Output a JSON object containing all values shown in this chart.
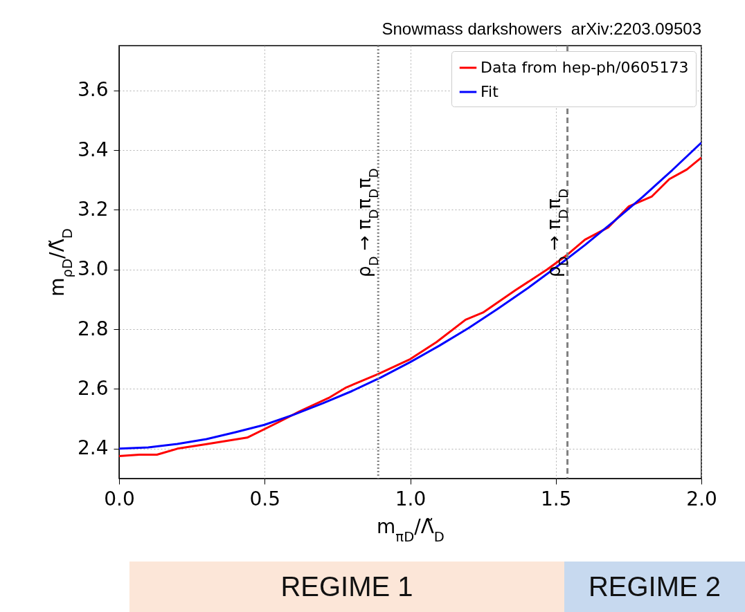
{
  "chart_data": {
    "type": "line",
    "title": "Snowmass darkshowers  arXiv:2203.09503",
    "xlabel": "m$_{πD}$/Λ̃$_{D}$",
    "ylabel": "m$_{ρD}$/Λ̃$_{D}$",
    "series": [
      {
        "name": "Data from hep-ph/0605173",
        "color": "#ff0000",
        "x": [
          0,
          0.07,
          0.13,
          0.2,
          0.3,
          0.44,
          0.55,
          0.62,
          0.72,
          0.78,
          0.89,
          1.0,
          1.09,
          1.19,
          1.25,
          1.36,
          1.47,
          1.54,
          1.6,
          1.68,
          1.75,
          1.83,
          1.89,
          1.95,
          2.0
        ],
        "values": [
          2.375,
          2.38,
          2.38,
          2.4,
          2.415,
          2.437,
          2.49,
          2.525,
          2.57,
          2.605,
          2.65,
          2.7,
          2.757,
          2.832,
          2.856,
          2.93,
          3.0,
          3.05,
          3.1,
          3.141,
          3.211,
          3.245,
          3.303,
          3.335,
          3.375
        ]
      },
      {
        "name": "Fit",
        "color": "#0000ff",
        "x": [
          0,
          0.1,
          0.2,
          0.3,
          0.4,
          0.5,
          0.6,
          0.7,
          0.8,
          0.9,
          1.0,
          1.1,
          1.2,
          1.3,
          1.4,
          1.5,
          1.6,
          1.7,
          1.8,
          1.9,
          2.0
        ],
        "values": [
          2.4,
          2.404,
          2.416,
          2.432,
          2.455,
          2.48,
          2.514,
          2.552,
          2.593,
          2.639,
          2.69,
          2.745,
          2.804,
          2.868,
          2.935,
          3.007,
          3.082,
          3.162,
          3.245,
          3.333,
          3.425
        ]
      }
    ],
    "xlim": [
      0,
      2
    ],
    "ylim": [
      2.3,
      3.75
    ],
    "xticks": [
      {
        "value": 0,
        "label": "0.0"
      },
      {
        "value": 0.5,
        "label": "0.5"
      },
      {
        "value": 1,
        "label": "1.0"
      },
      {
        "value": 1.5,
        "label": "1.5"
      },
      {
        "value": 2,
        "label": "2.0"
      }
    ],
    "yticks": [
      {
        "value": 2.4,
        "label": "2.4"
      },
      {
        "value": 2.6,
        "label": "2.6"
      },
      {
        "value": 2.8,
        "label": "2.8"
      },
      {
        "value": 3,
        "label": "3.0"
      },
      {
        "value": 3.2,
        "label": "3.2"
      },
      {
        "value": 3.4,
        "label": "3.4"
      },
      {
        "value": 3.6,
        "label": "3.6"
      }
    ],
    "ref_lines": [
      {
        "axis": "x",
        "value": 0.89,
        "label": "ρ$_{D}$ → π$_{D}$π$_{D}$π$_{D}$",
        "color": "#808080",
        "line_style": "dotted"
      },
      {
        "axis": "x",
        "value": 1.54,
        "label": "ρ$_{D}$ → π$_{D}$π$_{D}$",
        "color": "#808080",
        "line_style": "dashed"
      }
    ],
    "annotations": [
      "REGIME 1",
      "REGIME 2"
    ],
    "grid": true,
    "legend": "top right"
  }
}
